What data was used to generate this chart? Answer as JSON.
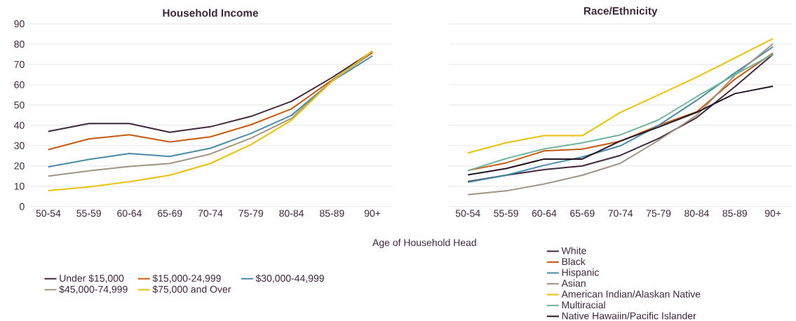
{
  "chart_data": [
    {
      "type": "line",
      "title": "Household Income",
      "xlabel": "Age of Household Head",
      "categories": [
        "50-54",
        "55-59",
        "60-64",
        "65-69",
        "70-74",
        "75-79",
        "80-84",
        "85-89",
        "90+"
      ],
      "ylim": [
        0,
        90
      ],
      "yticks": [
        0,
        10,
        20,
        30,
        40,
        50,
        60,
        70,
        80,
        90
      ],
      "grid": "y",
      "legend": "bottom",
      "series": [
        {
          "name": "Under $15,000",
          "color": "#40283c",
          "values": [
            37,
            40.9,
            40.9,
            36.6,
            39.3,
            44.4,
            51.8,
            63.5,
            76.4
          ]
        },
        {
          "name": "$15,000-24,999",
          "color": "#c55a11",
          "values": [
            28,
            33.3,
            35.4,
            31.8,
            34.3,
            40.3,
            48.1,
            62.3,
            75.8
          ]
        },
        {
          "name": "$30,000-44,999",
          "color": "#4a8aa6",
          "values": [
            19.6,
            23.2,
            26.1,
            24.7,
            28.7,
            36,
            44.9,
            61.7,
            74.2
          ]
        },
        {
          "name": "$45,000-74,999",
          "color": "#a09585",
          "values": [
            15,
            17.6,
            19.7,
            21.2,
            25.9,
            33.7,
            43.4,
            61.9,
            76.4
          ]
        },
        {
          "name": "$75,000 and Over",
          "color": "#e8c10c",
          "values": [
            7.8,
            9.6,
            12.2,
            15.4,
            21.2,
            30.5,
            42.5,
            61.7,
            76.7
          ]
        }
      ]
    },
    {
      "type": "line",
      "title": "Race/Ethnicity",
      "categories": [
        "50-54",
        "55-59",
        "60-64",
        "65-69",
        "70-74",
        "75-79",
        "80-84",
        "85-89",
        "90+"
      ],
      "ylim": [
        0,
        90
      ],
      "yticks": [
        0,
        10,
        20,
        30,
        40,
        50,
        60,
        70,
        80,
        90
      ],
      "tick_labels": "x",
      "grid": "y",
      "legend": "bottom",
      "series": [
        {
          "name": "White",
          "color": "#40283c",
          "values": [
            12.3,
            15.4,
            18.2,
            20,
            25.2,
            33.5,
            43.8,
            59,
            75
          ]
        },
        {
          "name": "Black",
          "color": "#c55a11",
          "values": [
            17.8,
            21.5,
            27.4,
            28.3,
            32.2,
            40,
            46.7,
            62.7,
            75.6
          ]
        },
        {
          "name": "Hispanic",
          "color": "#4a8aa6",
          "values": [
            12,
            15.4,
            20.3,
            24.4,
            29.9,
            40,
            52.3,
            65.8,
            78.7
          ]
        },
        {
          "name": "Asian",
          "color": "#a09585",
          "values": [
            5.8,
            7.7,
            11.1,
            15.4,
            21.3,
            32.6,
            44.9,
            64.6,
            80.2
          ]
        },
        {
          "name": "American Indian/Alaskan Native",
          "color": "#e8c10c",
          "values": [
            26.4,
            31.4,
            34.9,
            34.9,
            46.4,
            55,
            63.7,
            73.2,
            82.7
          ]
        },
        {
          "name": "Multiracial",
          "color": "#72b39c",
          "values": [
            17.7,
            23.6,
            28.4,
            31.4,
            35.3,
            42.7,
            54.1,
            64.9,
            75
          ]
        },
        {
          "name": "Native Hawaiin/Pacific Islander",
          "color": "#231622",
          "values": [
            15.6,
            18.7,
            23.4,
            23.4,
            32.3,
            39.1,
            46.4,
            55.6,
            59.3
          ]
        }
      ]
    }
  ]
}
